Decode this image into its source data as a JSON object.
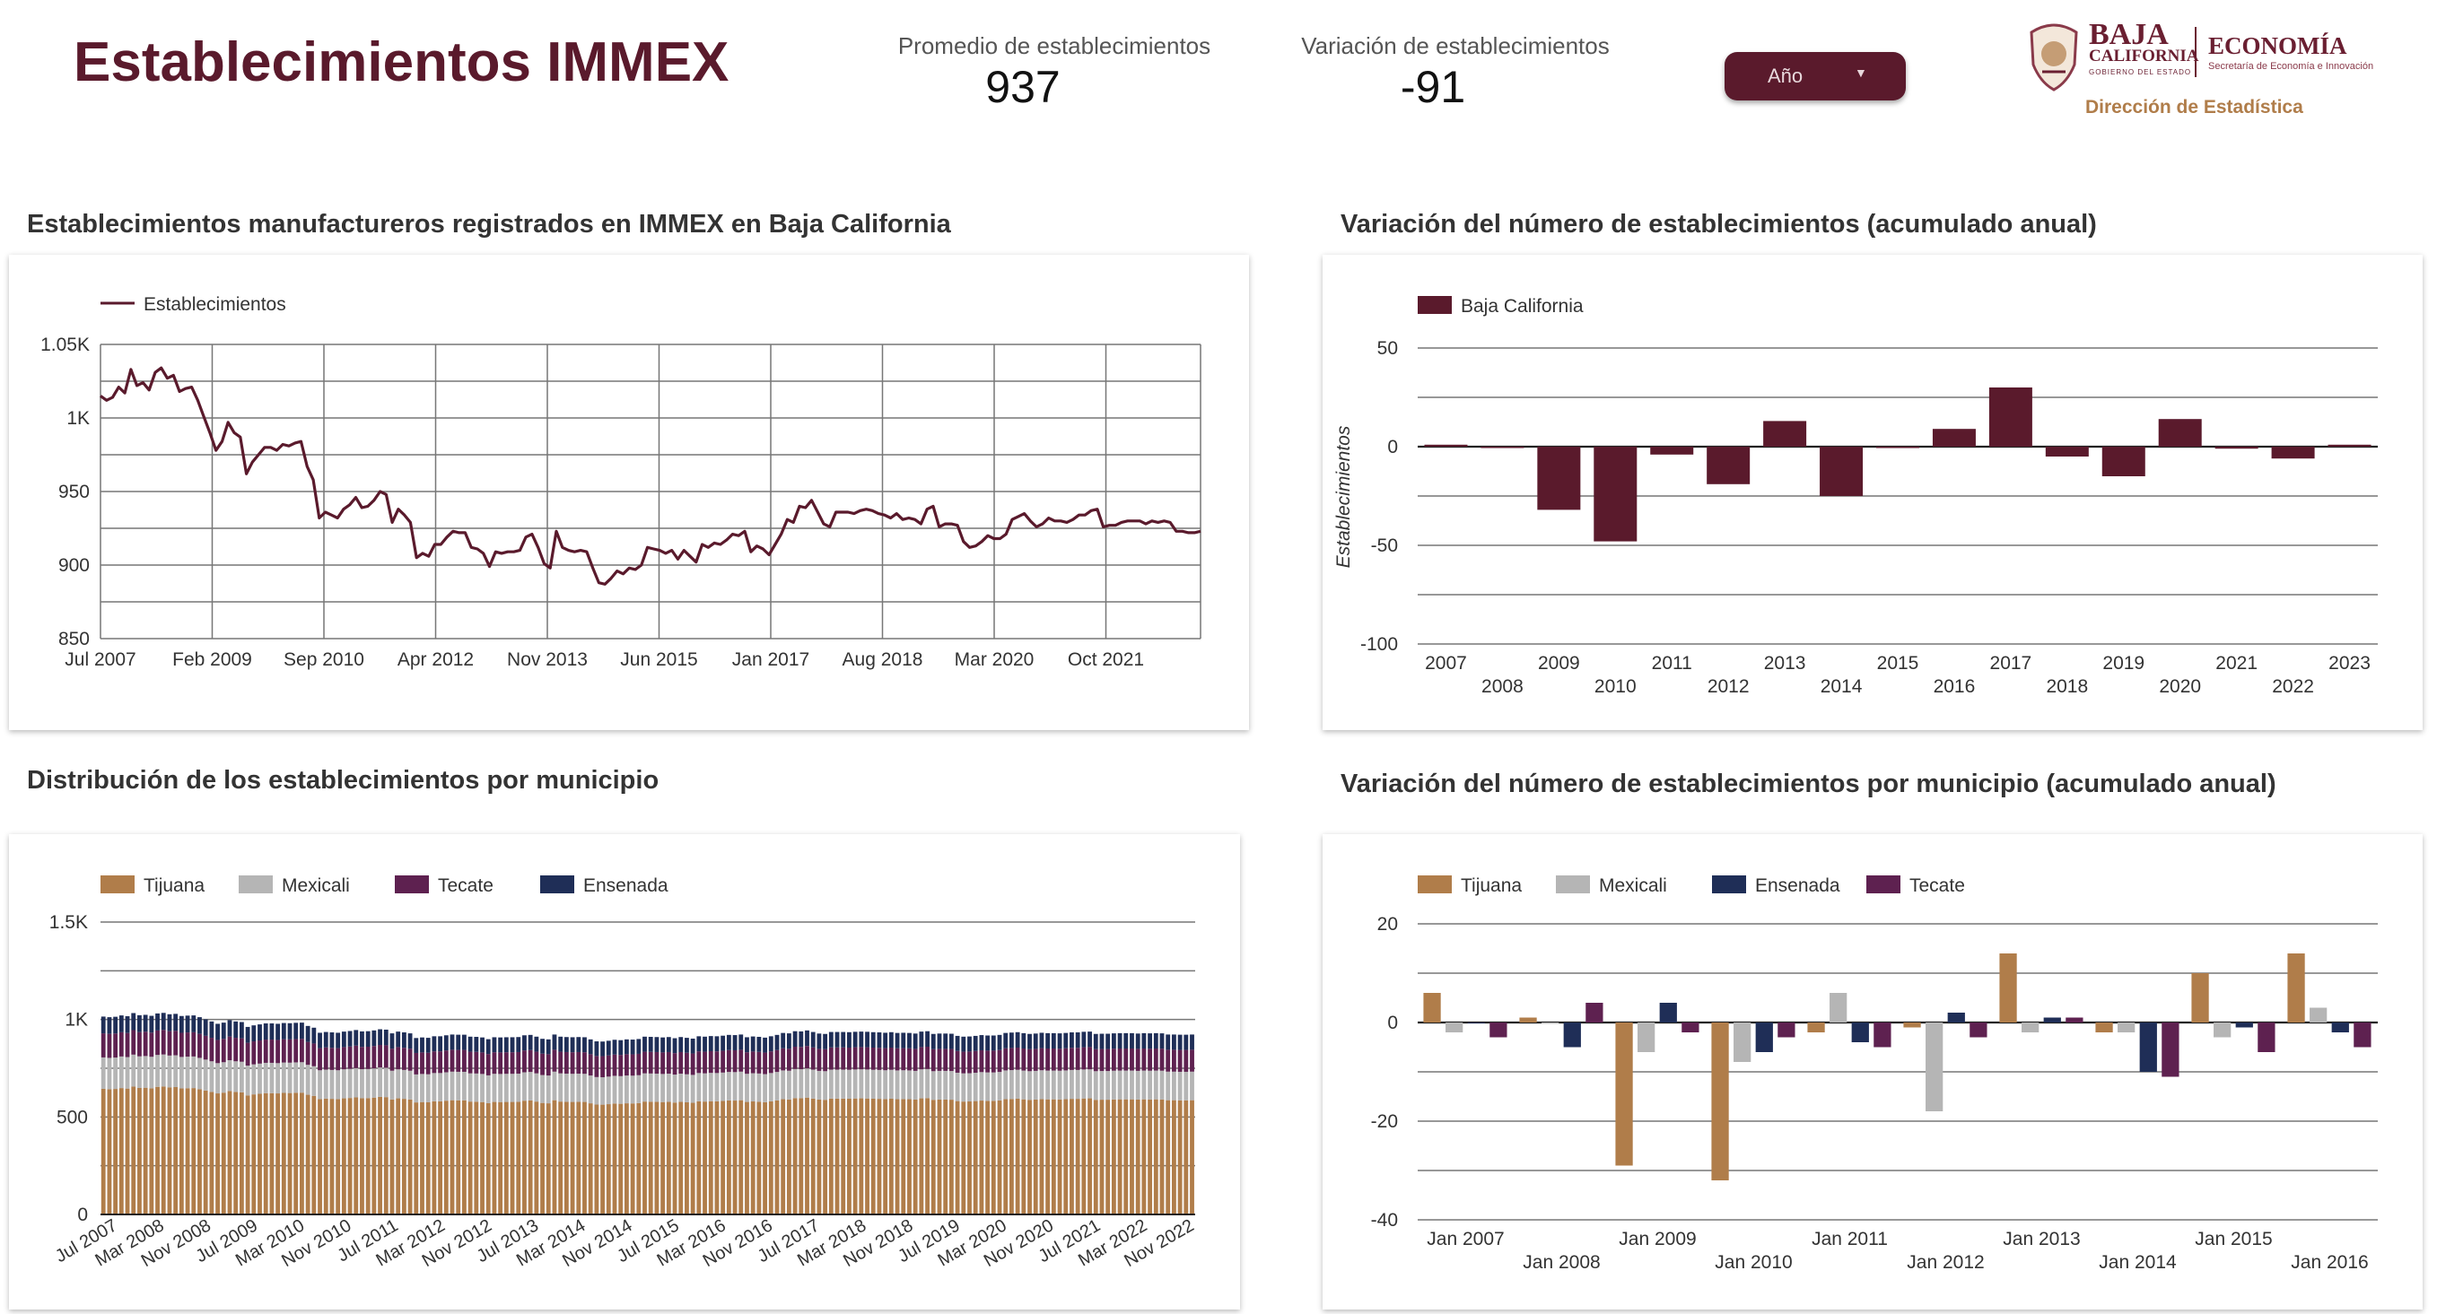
{
  "header": {
    "title": "Establecimientos IMMEX",
    "kpi_avg_label": "Promedio de establecimientos",
    "kpi_avg_value": "937",
    "kpi_var_label": "Variación de establecimientos",
    "kpi_var_value": "-91",
    "year_selector_label": "Año",
    "logo": {
      "baja": "BAJA",
      "california": "CALIFORNIA",
      "gobierno": "GOBIERNO DEL ESTADO",
      "economia": "ECONOMÍA",
      "secretaria": "Secretaría de Economía e Innovación",
      "direccion": "Dirección de Estadística"
    }
  },
  "colors": {
    "maroon": "#5a1a2c",
    "tijuana": "#b07d4a",
    "mexicali": "#b5b5b5",
    "tecate": "#5e2150",
    "ensenada": "#1f2e57"
  },
  "sections": {
    "line_title": "Establecimientos manufactureros registrados en IMMEX en Baja  California",
    "var_title": "Variación del número de establecimientos (acumulado anual)",
    "dist_title": "Distribución de los establecimientos por municipio",
    "mvar_title": "Variación del número de establecimientos por municipio (acumulado anual)"
  },
  "chart_data": [
    {
      "type": "line",
      "legend": [
        "Establecimientos"
      ],
      "series": [
        {
          "name": "Establecimientos",
          "values": [
            1015,
            1012,
            1014,
            1021,
            1017,
            1033,
            1022,
            1024,
            1019,
            1031,
            1034,
            1027,
            1029,
            1018,
            1020,
            1021,
            1012,
            1001,
            990,
            978,
            984,
            997,
            990,
            987,
            962,
            970,
            975,
            980,
            980,
            978,
            982,
            981,
            983,
            984,
            967,
            958,
            932,
            936,
            934,
            932,
            938,
            941,
            946,
            939,
            940,
            944,
            950,
            948,
            929,
            938,
            934,
            929,
            905,
            908,
            906,
            914,
            914,
            919,
            923,
            922,
            922,
            912,
            911,
            908,
            899,
            909,
            908,
            909,
            909,
            910,
            919,
            921,
            912,
            901,
            898,
            923,
            912,
            910,
            909,
            910,
            909,
            898,
            888,
            887,
            891,
            896,
            894,
            898,
            897,
            900,
            912,
            911,
            910,
            908,
            910,
            904,
            910,
            906,
            902,
            914,
            912,
            915,
            914,
            917,
            921,
            920,
            923,
            909,
            913,
            911,
            907,
            914,
            921,
            931,
            929,
            940,
            939,
            944,
            936,
            928,
            926,
            936,
            936,
            936,
            935,
            937,
            938,
            937,
            935,
            934,
            932,
            935,
            931,
            932,
            931,
            928,
            938,
            940,
            926,
            928,
            928,
            927,
            916,
            912,
            913,
            916,
            920,
            918,
            918,
            921,
            931,
            933,
            935,
            930,
            926,
            928,
            932,
            930,
            930,
            929,
            931,
            934,
            934,
            937,
            938,
            926,
            927,
            927,
            929,
            930,
            930,
            930,
            928,
            930,
            929,
            930,
            929,
            923,
            923,
            922,
            922,
            923
          ]
        }
      ],
      "xlabel": "",
      "ylabel": "",
      "x_range": [
        "Jul 2007",
        "Apr 2023"
      ],
      "x_ticks": [
        "Jul 2007",
        "Feb 2009",
        "Sep 2010",
        "Apr 2012",
        "Nov 2013",
        "Jun 2015",
        "Jan 2017",
        "Aug 2018",
        "Mar 2020",
        "Oct 2021"
      ],
      "y_ticks": [
        "850",
        "900",
        "950",
        "1K",
        "1.05K"
      ],
      "ylim": [
        850,
        1050
      ],
      "grid": true,
      "legend_position": "top-left"
    },
    {
      "type": "bar",
      "legend": [
        "Baja California"
      ],
      "ylabel": "Establecimientos",
      "categories": [
        "2007",
        "2008",
        "2009",
        "2010",
        "2011",
        "2012",
        "2013",
        "2014",
        "2015",
        "2016",
        "2017",
        "2018",
        "2019",
        "2020",
        "2021",
        "2022",
        "2023"
      ],
      "values": [
        1,
        0,
        -32,
        -48,
        -4,
        -19,
        13,
        -25,
        0,
        9,
        30,
        -5,
        -15,
        14,
        -1,
        -6,
        1
      ],
      "y_ticks": [
        "-100",
        "-50",
        "0",
        "50"
      ],
      "ylim": [
        -100,
        50
      ],
      "grid": true,
      "legend_position": "top-left"
    },
    {
      "type": "bar",
      "stacked": true,
      "legend": [
        "Tijuana",
        "Mexicali",
        "Tecate",
        "Ensenada"
      ],
      "x_ticks": [
        "Jul 2007",
        "Mar 2008",
        "Nov 2008",
        "Jul 2009",
        "Mar 2010",
        "Nov 2010",
        "Jul 2011",
        "Mar 2012",
        "Nov 2012",
        "Jul 2013",
        "Mar 2014",
        "Nov 2014",
        "Jul 2015",
        "Mar 2016",
        "Nov 2016",
        "Jul 2017",
        "Mar 2018",
        "Nov 2018",
        "Jul 2019",
        "Mar 2020",
        "Nov 2020",
        "Jul 2021",
        "Mar 2022",
        "Nov 2022"
      ],
      "y_ticks": [
        "0",
        "500",
        "1K",
        "1.5K"
      ],
      "ylim": [
        0,
        1500
      ],
      "approx_values": {
        "Tijuana": 600,
        "Mexicali": 150,
        "Tecate": 115,
        "Ensenada": 80
      },
      "grid": true,
      "legend_position": "top-left"
    },
    {
      "type": "bar",
      "legend": [
        "Tijuana",
        "Mexicali",
        "Ensenada",
        "Tecate"
      ],
      "categories": [
        "Jan 2007",
        "Jan 2008",
        "Jan 2009",
        "Jan 2010",
        "Jan 2011",
        "Jan 2012",
        "Jan 2013",
        "Jan 2014",
        "Jan 2015",
        "Jan 2016"
      ],
      "series": [
        {
          "name": "Tijuana",
          "values": [
            6,
            1,
            -29,
            -32,
            -2,
            -1,
            14,
            -2,
            10,
            14
          ]
        },
        {
          "name": "Mexicali",
          "values": [
            -2,
            0,
            -6,
            -8,
            6,
            -18,
            -2,
            -2,
            -3,
            3
          ]
        },
        {
          "name": "Ensenada",
          "values": [
            0,
            -5,
            4,
            -6,
            -4,
            2,
            1,
            -10,
            -1,
            -2
          ]
        },
        {
          "name": "Tecate",
          "values": [
            -3,
            4,
            -2,
            -3,
            -5,
            -3,
            1,
            -11,
            -6,
            -5
          ]
        }
      ],
      "y_ticks": [
        "-40",
        "-20",
        "0",
        "20"
      ],
      "ylim": [
        -40,
        20
      ],
      "grid": true,
      "legend_position": "top-left"
    }
  ]
}
